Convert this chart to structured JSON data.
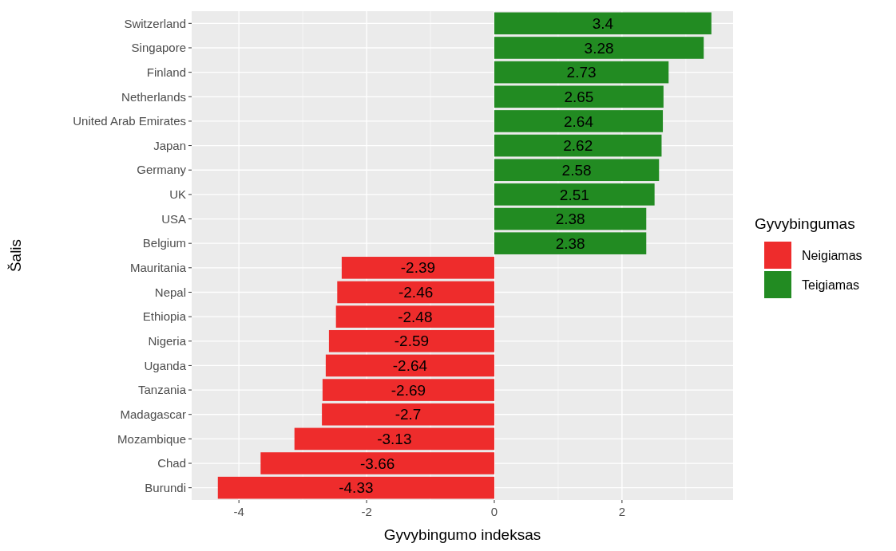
{
  "chart_data": {
    "type": "bar",
    "orientation": "horizontal",
    "xlabel": "Gyvybingumo indeksas",
    "ylabel": "Šalis",
    "legend_title": "Gyvybingumas",
    "categories": [
      "Switzerland",
      "Singapore",
      "Finland",
      "Netherlands",
      "United Arab Emirates",
      "Japan",
      "Germany",
      "UK",
      "USA",
      "Belgium",
      "Mauritania",
      "Nepal",
      "Ethiopia",
      "Nigeria",
      "Uganda",
      "Tanzania",
      "Madagascar",
      "Mozambique",
      "Chad",
      "Burundi"
    ],
    "series": [
      {
        "name": "Neigiamas",
        "color": "#ee2c2c",
        "values": [
          null,
          null,
          null,
          null,
          null,
          null,
          null,
          null,
          null,
          null,
          -2.39,
          -2.46,
          -2.48,
          -2.59,
          -2.64,
          -2.69,
          -2.7,
          -3.13,
          -3.66,
          -4.33
        ]
      },
      {
        "name": "Teigiamas",
        "color": "#228b22",
        "values": [
          3.4,
          3.28,
          2.73,
          2.65,
          2.64,
          2.62,
          2.58,
          2.51,
          2.38,
          2.38,
          null,
          null,
          null,
          null,
          null,
          null,
          null,
          null,
          null,
          null
        ]
      }
    ],
    "xlim": [
      -4.74,
      3.74
    ],
    "xticks": [
      -4,
      -2,
      0,
      2
    ],
    "grid": true,
    "legend": "right",
    "data_labels": true
  }
}
